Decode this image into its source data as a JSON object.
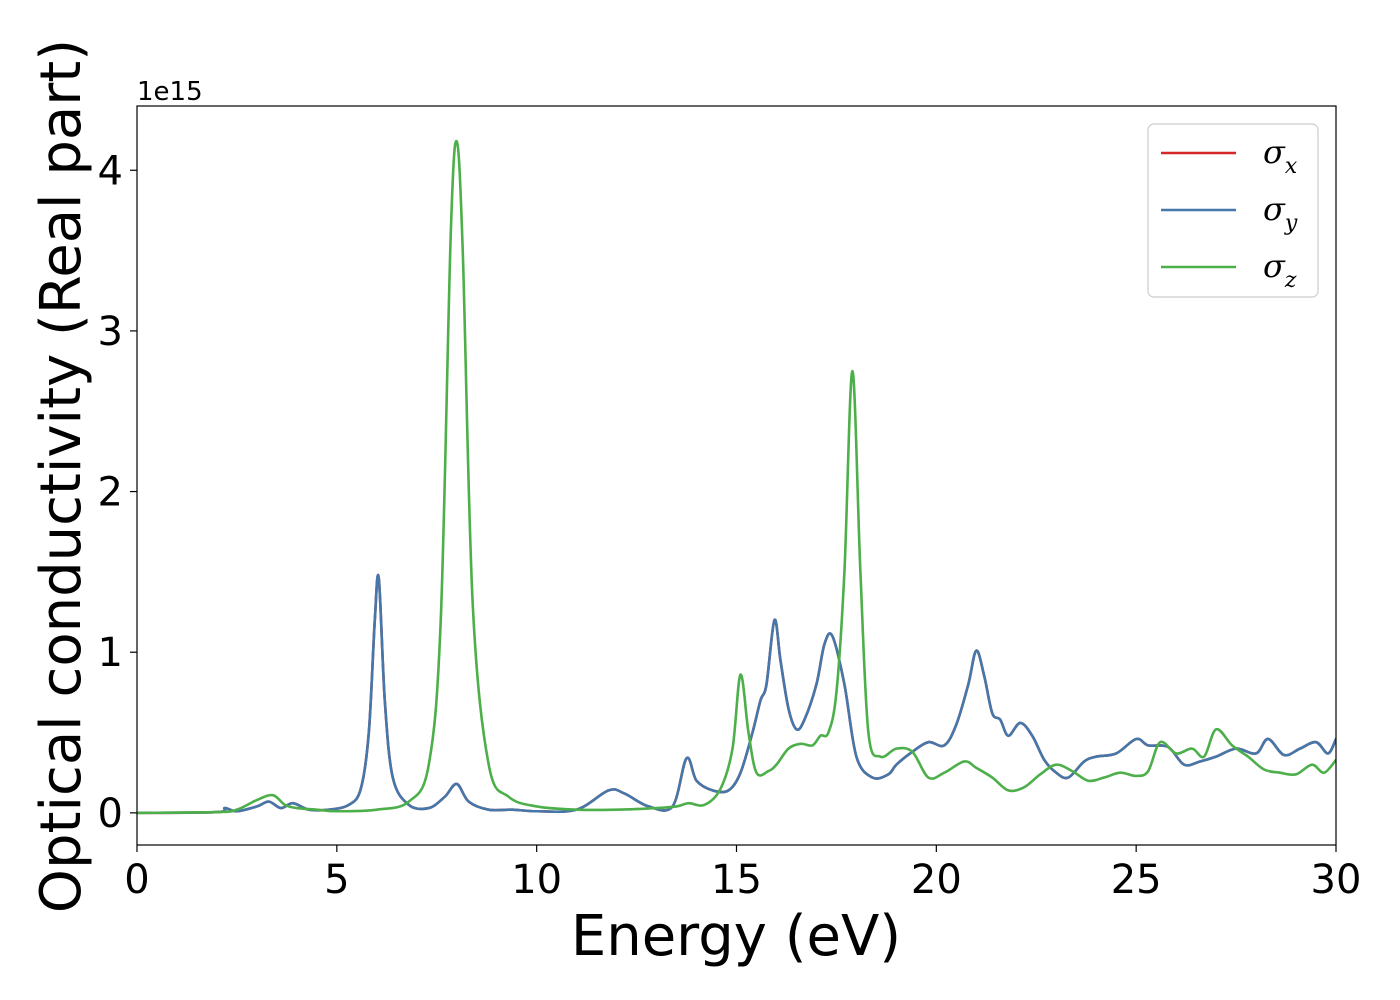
{
  "chart_data": {
    "type": "line",
    "xlabel": "Energy (eV)",
    "ylabel": "Optical conductivity (Real part)",
    "y_offset_text": "1e15",
    "y_scale_factor": 1000000000000000.0,
    "xlim": [
      0,
      30
    ],
    "ylim": [
      -0.2,
      4.4
    ],
    "x_ticks": [
      0,
      5,
      10,
      15,
      20,
      25,
      30
    ],
    "x_tick_labels": [
      "0",
      "5",
      "10",
      "15",
      "20",
      "25",
      "30"
    ],
    "y_ticks": [
      0,
      1,
      2,
      3,
      4
    ],
    "y_tick_labels": [
      "0",
      "1",
      "2",
      "3",
      "4"
    ],
    "grid": false,
    "legend_position": "top-right",
    "series": [
      {
        "name": "σx",
        "legend_symbol": "σ",
        "legend_sub": "x",
        "color": "#d62728",
        "x": [
          0,
          2.0,
          2.2,
          2.5,
          3.0,
          3.3,
          3.6,
          3.9,
          4.3,
          4.8,
          5.3,
          5.6,
          5.8,
          5.95,
          6.05,
          6.2,
          6.4,
          6.8,
          7.3,
          7.7,
          8.0,
          8.3,
          8.8,
          9.4,
          10.0,
          11.0,
          11.8,
          12.2,
          12.8,
          13.4,
          13.75,
          14.0,
          14.4,
          14.8,
          15.1,
          15.4,
          15.6,
          15.75,
          15.95,
          16.1,
          16.3,
          16.5,
          16.7,
          17.0,
          17.2,
          17.4,
          17.7,
          18.0,
          18.4,
          18.8,
          19.0,
          19.4,
          19.8,
          20.2,
          20.5,
          20.8,
          21.0,
          21.2,
          21.4,
          21.6,
          21.8,
          22.1,
          22.4,
          22.7,
          23.0,
          23.3,
          23.7,
          24.0,
          24.5,
          25.0,
          25.3,
          25.8,
          26.2,
          26.6,
          27.0,
          27.5,
          28.0,
          28.3,
          28.7,
          29.1,
          29.5,
          29.8,
          30.0
        ],
        "y": [
          0,
          0.005,
          0.03,
          0.01,
          0.04,
          0.07,
          0.03,
          0.06,
          0.02,
          0.02,
          0.05,
          0.15,
          0.5,
          1.2,
          1.46,
          0.7,
          0.22,
          0.05,
          0.03,
          0.1,
          0.18,
          0.07,
          0.02,
          0.02,
          0.01,
          0.02,
          0.14,
          0.12,
          0.04,
          0.04,
          0.34,
          0.2,
          0.14,
          0.14,
          0.25,
          0.5,
          0.7,
          0.8,
          1.2,
          0.95,
          0.65,
          0.52,
          0.58,
          0.8,
          1.05,
          1.1,
          0.8,
          0.35,
          0.22,
          0.24,
          0.3,
          0.38,
          0.44,
          0.42,
          0.55,
          0.8,
          1.01,
          0.85,
          0.62,
          0.58,
          0.48,
          0.56,
          0.48,
          0.33,
          0.25,
          0.22,
          0.32,
          0.35,
          0.37,
          0.46,
          0.42,
          0.41,
          0.3,
          0.32,
          0.35,
          0.4,
          0.37,
          0.46,
          0.36,
          0.4,
          0.44,
          0.37,
          0.46
        ]
      },
      {
        "name": "σy",
        "legend_symbol": "σ",
        "legend_sub": "y",
        "color": "#4477aa",
        "x": [
          0,
          2.0,
          2.2,
          2.5,
          3.0,
          3.3,
          3.6,
          3.9,
          4.3,
          4.8,
          5.3,
          5.6,
          5.8,
          5.95,
          6.05,
          6.2,
          6.4,
          6.8,
          7.3,
          7.7,
          8.0,
          8.3,
          8.8,
          9.4,
          10.0,
          11.0,
          11.8,
          12.2,
          12.8,
          13.4,
          13.75,
          14.0,
          14.4,
          14.8,
          15.1,
          15.4,
          15.6,
          15.75,
          15.95,
          16.1,
          16.3,
          16.5,
          16.7,
          17.0,
          17.2,
          17.4,
          17.7,
          18.0,
          18.4,
          18.8,
          19.0,
          19.4,
          19.8,
          20.2,
          20.5,
          20.8,
          21.0,
          21.2,
          21.4,
          21.6,
          21.8,
          22.1,
          22.4,
          22.7,
          23.0,
          23.3,
          23.7,
          24.0,
          24.5,
          25.0,
          25.3,
          25.8,
          26.2,
          26.6,
          27.0,
          27.5,
          28.0,
          28.3,
          28.7,
          29.1,
          29.5,
          29.8,
          30.0
        ],
        "y": [
          0,
          0.005,
          0.03,
          0.01,
          0.04,
          0.07,
          0.03,
          0.06,
          0.02,
          0.02,
          0.05,
          0.15,
          0.5,
          1.2,
          1.46,
          0.7,
          0.22,
          0.05,
          0.03,
          0.1,
          0.18,
          0.07,
          0.02,
          0.02,
          0.01,
          0.02,
          0.14,
          0.12,
          0.04,
          0.04,
          0.34,
          0.2,
          0.14,
          0.14,
          0.25,
          0.5,
          0.7,
          0.8,
          1.2,
          0.95,
          0.65,
          0.52,
          0.58,
          0.8,
          1.05,
          1.1,
          0.8,
          0.35,
          0.22,
          0.24,
          0.3,
          0.38,
          0.44,
          0.42,
          0.55,
          0.8,
          1.01,
          0.85,
          0.62,
          0.58,
          0.48,
          0.56,
          0.48,
          0.33,
          0.25,
          0.22,
          0.32,
          0.35,
          0.37,
          0.46,
          0.42,
          0.41,
          0.3,
          0.32,
          0.35,
          0.4,
          0.37,
          0.46,
          0.36,
          0.4,
          0.44,
          0.37,
          0.46
        ]
      },
      {
        "name": "σz",
        "legend_symbol": "σ",
        "legend_sub": "z",
        "color": "#4daf4a",
        "x": [
          0,
          2.0,
          2.5,
          3.0,
          3.4,
          3.7,
          4.0,
          4.5,
          5.0,
          6.0,
          6.8,
          7.3,
          7.6,
          7.85,
          8.0,
          8.15,
          8.4,
          8.8,
          9.3,
          10.0,
          11.0,
          12.0,
          13.0,
          13.5,
          13.8,
          14.2,
          14.6,
          14.9,
          15.1,
          15.3,
          15.5,
          15.8,
          16.0,
          16.3,
          16.6,
          16.9,
          17.1,
          17.3,
          17.5,
          17.7,
          17.9,
          18.1,
          18.3,
          18.6,
          19.0,
          19.4,
          19.8,
          20.2,
          20.7,
          21.0,
          21.4,
          21.8,
          22.2,
          22.6,
          23.0,
          23.4,
          23.8,
          24.2,
          24.6,
          25.0,
          25.3,
          25.6,
          26.0,
          26.4,
          26.7,
          27.0,
          27.4,
          27.8,
          28.2,
          28.6,
          29.0,
          29.4,
          29.7,
          30.0
        ],
        "y": [
          0,
          0.005,
          0.02,
          0.08,
          0.11,
          0.05,
          0.03,
          0.02,
          0.01,
          0.02,
          0.07,
          0.3,
          1.2,
          3.6,
          4.18,
          3.5,
          1.3,
          0.3,
          0.1,
          0.04,
          0.02,
          0.02,
          0.03,
          0.04,
          0.06,
          0.05,
          0.15,
          0.4,
          0.86,
          0.5,
          0.25,
          0.26,
          0.3,
          0.4,
          0.43,
          0.42,
          0.48,
          0.5,
          0.75,
          1.5,
          2.75,
          1.5,
          0.5,
          0.35,
          0.4,
          0.38,
          0.22,
          0.25,
          0.32,
          0.28,
          0.22,
          0.14,
          0.16,
          0.24,
          0.3,
          0.26,
          0.2,
          0.22,
          0.25,
          0.23,
          0.26,
          0.44,
          0.37,
          0.4,
          0.35,
          0.52,
          0.42,
          0.35,
          0.27,
          0.25,
          0.24,
          0.3,
          0.25,
          0.33
        ]
      }
    ]
  }
}
